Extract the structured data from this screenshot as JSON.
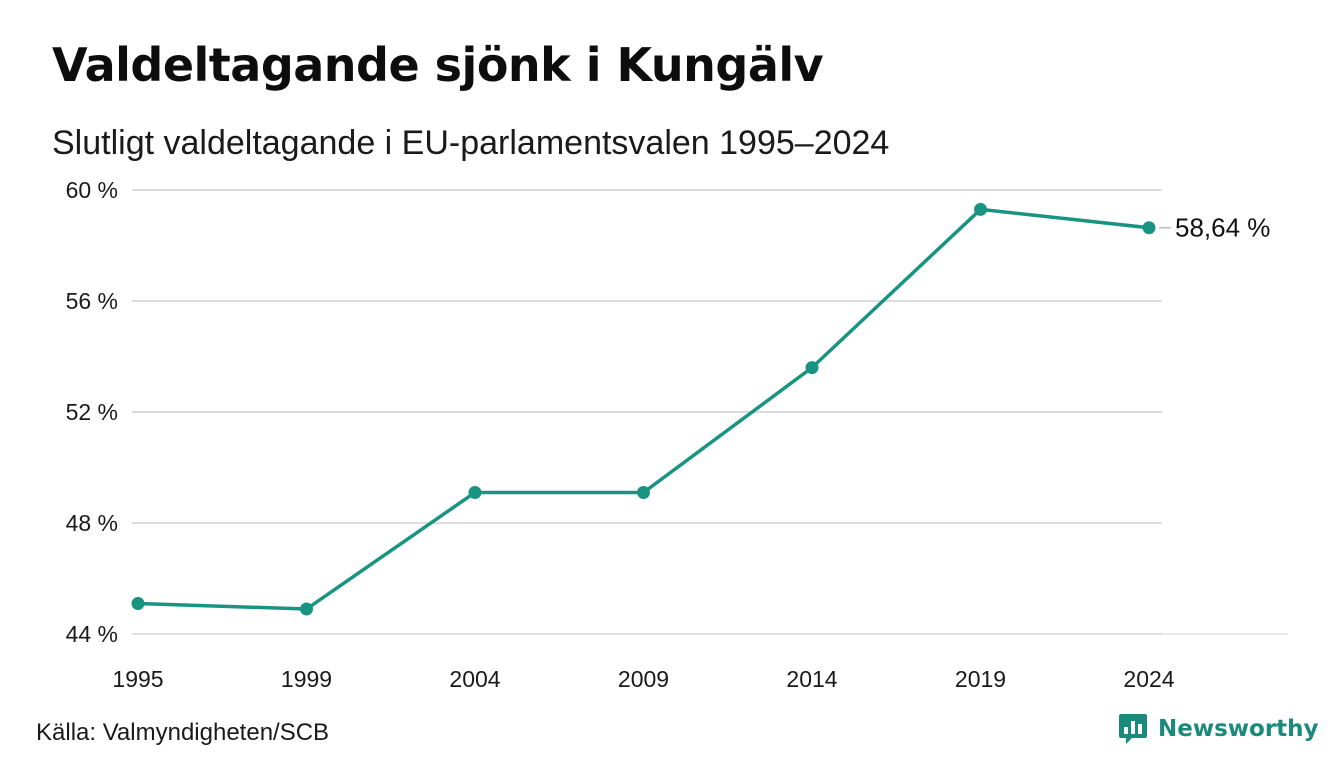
{
  "title": "Valdeltagande sjönk i Kungälv",
  "subtitle": "Slutligt valdeltagande i EU-parlamentsvalen 1995–2024",
  "source": "Källa: Valmyndigheten/SCB",
  "brand": {
    "name": "Newsworthy",
    "icon": "newsworthy-logo-icon",
    "color": "#1a8a7c"
  },
  "chart_data": {
    "type": "line",
    "x": [
      "1995",
      "1999",
      "2004",
      "2009",
      "2014",
      "2019",
      "2024"
    ],
    "series": [
      {
        "values": [
          45.1,
          44.9,
          49.1,
          49.1,
          53.6,
          59.3,
          58.64
        ],
        "color": "#1a9482"
      }
    ],
    "ylim": [
      44,
      60
    ],
    "yticks": [
      60,
      56,
      52,
      48,
      44
    ],
    "ytick_labels": [
      "60 %",
      "56 %",
      "52 %",
      "48 %",
      "44 %"
    ],
    "end_label": "58,64 %",
    "grid": true,
    "xlabel": "",
    "ylabel": ""
  }
}
